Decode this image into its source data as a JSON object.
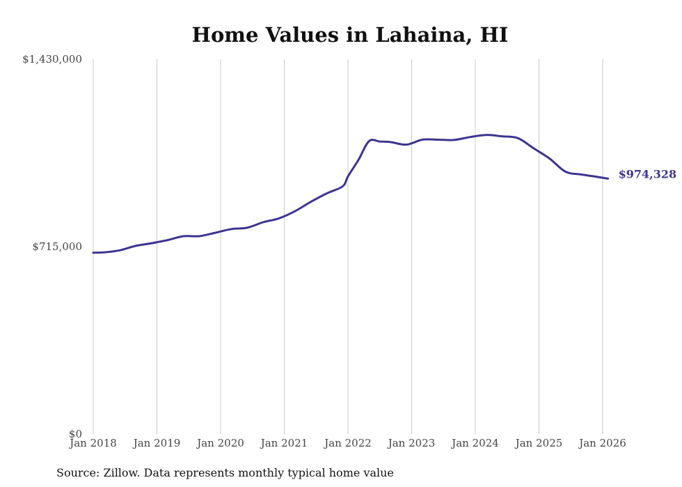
{
  "chart_data": {
    "type": "line",
    "title": "Home Values in Lahaina, HI",
    "source": "Source: Zillow. Data represents monthly typical home value",
    "ylim": [
      0,
      1430000
    ],
    "y_ticks": [
      {
        "value": 0,
        "label": "$0"
      },
      {
        "value": 715000,
        "label": "$715,000"
      },
      {
        "value": 1430000,
        "label": "$1,430,000"
      }
    ],
    "x_ticks": [
      "Jan 2018",
      "Jan 2019",
      "Jan 2020",
      "Jan 2021",
      "Jan 2022",
      "Jan 2023",
      "Jan 2024",
      "Jan 2025",
      "Jan 2026"
    ],
    "grid": "vertical",
    "legend": "none",
    "series": [
      {
        "color": "#3d3490",
        "end_label": "$974,328",
        "x": [
          "2018-01",
          "2018-03",
          "2018-06",
          "2018-09",
          "2018-12",
          "2019-03",
          "2019-06",
          "2019-09",
          "2019-12",
          "2020-03",
          "2020-06",
          "2020-09",
          "2020-12",
          "2021-03",
          "2021-06",
          "2021-09",
          "2021-12",
          "2022-01",
          "2022-03",
          "2022-05",
          "2022-07",
          "2022-09",
          "2022-12",
          "2023-03",
          "2023-06",
          "2023-09",
          "2023-12",
          "2024-03",
          "2024-06",
          "2024-09",
          "2024-12",
          "2025-03",
          "2025-06",
          "2025-09",
          "2025-12",
          "2026-02"
        ],
        "values": [
          692000,
          693000,
          701000,
          718000,
          728000,
          740000,
          755000,
          755000,
          768000,
          782000,
          787000,
          808000,
          823000,
          850000,
          886000,
          918000,
          945000,
          983000,
          1047000,
          1118000,
          1116000,
          1114000,
          1104000,
          1123000,
          1123000,
          1122000,
          1133000,
          1141000,
          1136000,
          1129000,
          1090000,
          1051000,
          1001000,
          990000,
          981000,
          974328
        ]
      }
    ]
  }
}
